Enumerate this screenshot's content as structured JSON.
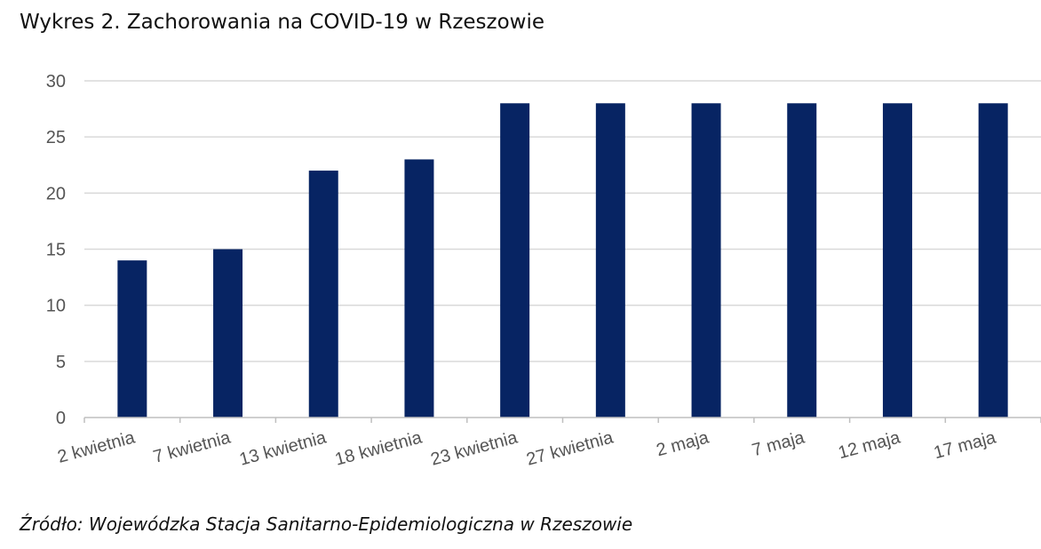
{
  "title": "Wykres 2. Zachorowania na COVID-19 w Rzeszowie",
  "source": "Źródło: Wojewódzka Stacja Sanitarno-Epidemiologiczna w Rzeszowie",
  "colors": {
    "bar": "#072463",
    "grid": "#d9d9d9",
    "axis": "#bfbfbf"
  },
  "chart_data": {
    "type": "bar",
    "categories": [
      "2 kwietnia",
      "7 kwietnia",
      "13 kwietnia",
      "18 kwietnia",
      "23 kwietnia",
      "27 kwietnia",
      "2 maja",
      "7 maja",
      "12 maja",
      "17 maja"
    ],
    "values": [
      14,
      15,
      22,
      23,
      28,
      28,
      28,
      28,
      28,
      28
    ],
    "yticks": [
      0,
      5,
      10,
      15,
      20,
      25,
      30
    ],
    "ylim": [
      0,
      30
    ],
    "grid": true,
    "legend": "none"
  }
}
